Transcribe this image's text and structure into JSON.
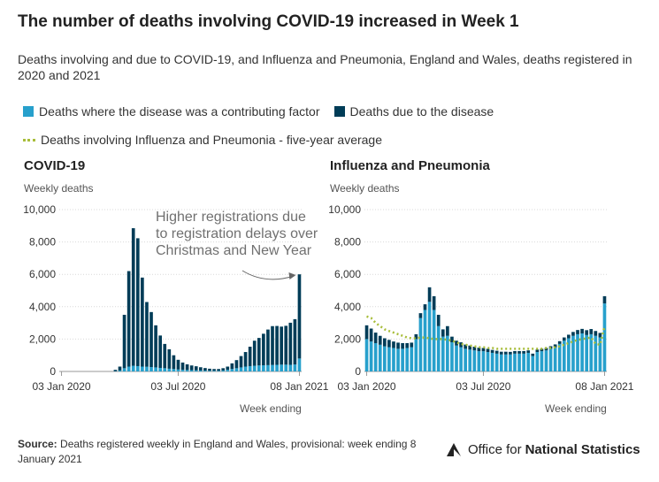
{
  "title": "The number of deaths involving COVID-19 increased in Week 1",
  "subtitle": "Deaths involving and due to COVID-19, and Influenza and Pneumonia, England and Wales, deaths registered in 2020 and 2021",
  "legend": {
    "contributing": "Deaths where the disease was a contributing factor",
    "due": "Deaths due to the disease",
    "average": "Deaths involving Influenza and Pneumonia - five-year average"
  },
  "colors": {
    "contributing": "#27a0cc",
    "due": "#003c57",
    "average": "#a8bd3a",
    "annotation": "#707070"
  },
  "source": {
    "label": "Source:",
    "text": "Deaths registered weekly in England and Wales, provisional: week ending 8 January 2021"
  },
  "ons_logo": {
    "normal": "Office for",
    "bold": "National Statistics"
  },
  "chart_data": [
    {
      "type": "bar",
      "stacked": true,
      "title": "COVID-19",
      "ylabel": "Weekly deaths",
      "xlabel": "Week ending",
      "ylim": [
        0,
        10000
      ],
      "yticks": [
        0,
        2000,
        4000,
        6000,
        8000,
        10000
      ],
      "ytick_labels": [
        "0",
        "2,000",
        "4,000",
        "6,000",
        "8,000",
        "10,000"
      ],
      "xtick_labels": [
        {
          "label": "03 Jan 2020",
          "index": 0
        },
        {
          "label": "03 Jul 2020",
          "index": 26
        },
        {
          "label": "08 Jan 2021",
          "index": 53
        }
      ],
      "grid": true,
      "annotation": {
        "text": [
          "Higher registrations due",
          "to registration delays over",
          "Christmas and New Year"
        ],
        "target_index": 53
      },
      "series": [
        {
          "name": "Deaths where the disease was a contributing factor",
          "values": [
            0,
            0,
            0,
            0,
            0,
            0,
            0,
            0,
            0,
            0,
            0,
            0,
            20,
            60,
            200,
            300,
            350,
            330,
            300,
            290,
            270,
            250,
            220,
            200,
            170,
            150,
            120,
            100,
            90,
            80,
            70,
            60,
            50,
            40,
            40,
            40,
            60,
            100,
            150,
            200,
            250,
            300,
            330,
            350,
            370,
            380,
            390,
            400,
            410,
            420,
            420,
            410,
            430,
            800
          ]
        },
        {
          "name": "Deaths due to the disease",
          "values": [
            0,
            0,
            0,
            0,
            0,
            0,
            0,
            0,
            0,
            0,
            0,
            0,
            80,
            240,
            3300,
            5900,
            8500,
            7900,
            5500,
            4000,
            3400,
            2600,
            2000,
            1500,
            1200,
            850,
            600,
            450,
            350,
            290,
            250,
            200,
            160,
            130,
            110,
            110,
            140,
            200,
            350,
            500,
            700,
            900,
            1200,
            1550,
            1700,
            1950,
            2200,
            2400,
            2400,
            2350,
            2400,
            2600,
            2800,
            5200
          ]
        }
      ]
    },
    {
      "type": "bar",
      "stacked": true,
      "title": "Influenza and Pneumonia",
      "ylabel": "Weekly deaths",
      "xlabel": "Week ending",
      "ylim": [
        0,
        10000
      ],
      "yticks": [
        0,
        2000,
        4000,
        6000,
        8000,
        10000
      ],
      "ytick_labels": [
        "0",
        "2,000",
        "4,000",
        "6,000",
        "8,000",
        "10,000"
      ],
      "xtick_labels": [
        {
          "label": "03 Jan 2020",
          "index": 0
        },
        {
          "label": "03 Jul 2020",
          "index": 26
        },
        {
          "label": "08 Jan 2021",
          "index": 53
        }
      ],
      "grid": true,
      "series": [
        {
          "name": "Deaths where the disease was a contributing factor",
          "values": [
            2000,
            1850,
            1750,
            1650,
            1550,
            1500,
            1450,
            1400,
            1400,
            1450,
            1500,
            2000,
            3300,
            3800,
            4300,
            3800,
            2800,
            2150,
            2200,
            1800,
            1600,
            1500,
            1400,
            1350,
            1300,
            1250,
            1250,
            1200,
            1150,
            1100,
            1050,
            1050,
            1050,
            1100,
            1100,
            1100,
            1150,
            950,
            1200,
            1250,
            1300,
            1400,
            1500,
            1700,
            1900,
            2050,
            2200,
            2300,
            2350,
            2250,
            2300,
            2200,
            2100,
            4200
          ]
        },
        {
          "name": "Deaths due to the disease",
          "values": [
            850,
            800,
            650,
            550,
            500,
            450,
            400,
            380,
            350,
            300,
            280,
            300,
            300,
            350,
            900,
            850,
            700,
            450,
            600,
            350,
            300,
            300,
            260,
            250,
            230,
            220,
            200,
            200,
            180,
            180,
            170,
            170,
            160,
            160,
            160,
            160,
            150,
            150,
            150,
            150,
            150,
            160,
            170,
            170,
            200,
            220,
            240,
            260,
            280,
            300,
            320,
            300,
            280,
            450
          ]
        },
        {
          "name": "Deaths involving Influenza and Pneumonia - five-year average",
          "render": "dotted-line",
          "values": [
            3400,
            3300,
            3000,
            2800,
            2600,
            2500,
            2400,
            2300,
            2200,
            2100,
            2050,
            2050,
            2100,
            2100,
            2050,
            2000,
            2000,
            2000,
            1950,
            1900,
            1800,
            1700,
            1650,
            1600,
            1550,
            1500,
            1500,
            1450,
            1450,
            1400,
            1400,
            1400,
            1400,
            1400,
            1400,
            1400,
            1400,
            1400,
            1400,
            1400,
            1450,
            1450,
            1500,
            1550,
            1650,
            1750,
            1850,
            1950,
            2000,
            2050,
            2100,
            1700,
            1650,
            2800
          ]
        }
      ]
    }
  ]
}
